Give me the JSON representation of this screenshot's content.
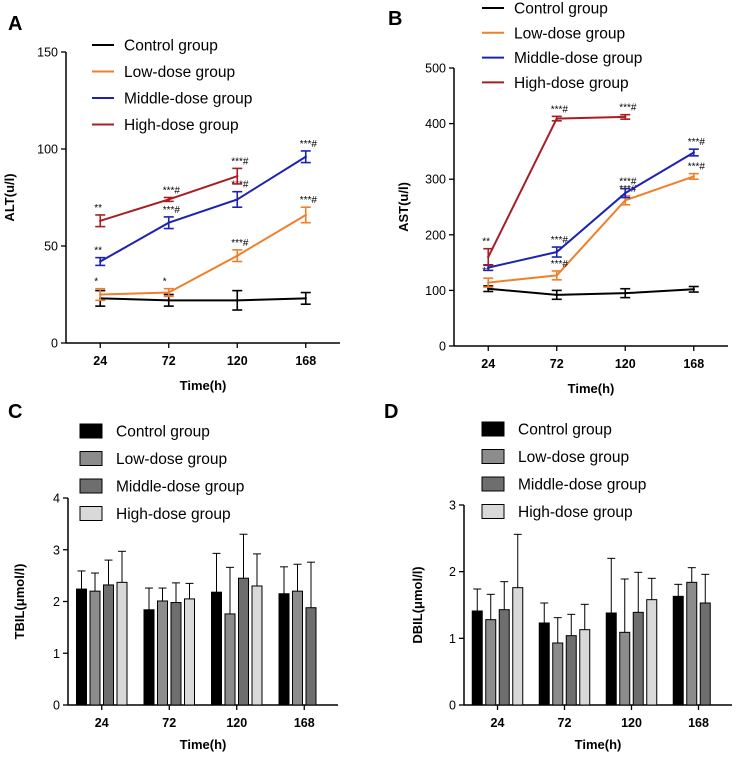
{
  "series_colors": {
    "Control group": "#000000",
    "Low-dose group": "#F07F2A",
    "Middle-dose group": "#1E22B0",
    "High-dose group": "#A81E23"
  },
  "bar_fills": [
    "#000000",
    "#8C8C8C",
    "#6E6E6E",
    "#D9D9D9"
  ],
  "chart_data": [
    {
      "id": "A",
      "panel_label": "A",
      "type": "line",
      "categories": [
        "24",
        "72",
        "120",
        "168"
      ],
      "xlabel": "Time(h)",
      "ylabel": "ALT(u/l)",
      "ylim": [
        0,
        150
      ],
      "yticks": [
        0,
        50,
        100,
        150
      ],
      "legend": [
        "Control group",
        "Low-dose group",
        "Middle-dose group",
        "High-dose group"
      ],
      "series": [
        {
          "name": "Control group",
          "values": [
            23,
            22,
            22,
            23
          ],
          "errors": [
            4,
            3,
            5,
            3
          ],
          "annotations": [
            "",
            "",
            "",
            ""
          ]
        },
        {
          "name": "Low-dose group",
          "values": [
            25,
            26,
            45,
            66
          ],
          "errors": [
            3,
            2,
            3,
            4
          ],
          "annotations": [
            "*",
            "*",
            "***#",
            "***#"
          ]
        },
        {
          "name": "Middle-dose group",
          "values": [
            42,
            62,
            74,
            96
          ],
          "errors": [
            2,
            3,
            4,
            3
          ],
          "annotations": [
            "**",
            "***#",
            "***#",
            "***#"
          ]
        },
        {
          "name": "High-dose group",
          "values": [
            63,
            74,
            86,
            null
          ],
          "errors": [
            3,
            1,
            4,
            null
          ],
          "annotations": [
            "**",
            "***#",
            "***#",
            ""
          ]
        }
      ]
    },
    {
      "id": "B",
      "panel_label": "B",
      "type": "line",
      "categories": [
        "24",
        "72",
        "120",
        "168"
      ],
      "xlabel": "Time(h)",
      "ylabel": "AST(u/l)",
      "ylim": [
        0,
        500
      ],
      "yticks": [
        0,
        100,
        200,
        300,
        400,
        500
      ],
      "legend": [
        "Control group",
        "Low-dose group",
        "Middle-dose group",
        "High-dose group"
      ],
      "series": [
        {
          "name": "Control group",
          "values": [
            103,
            92,
            95,
            102
          ],
          "errors": [
            5,
            8,
            8,
            5
          ],
          "annotations": [
            "",
            "",
            "",
            ""
          ]
        },
        {
          "name": "Low-dose group",
          "values": [
            114,
            127,
            262,
            305
          ],
          "errors": [
            8,
            8,
            8,
            5
          ],
          "annotations": [
            "**",
            "***#",
            "***#",
            "***#"
          ]
        },
        {
          "name": "Middle-dose group",
          "values": [
            141,
            169,
            275,
            348
          ],
          "errors": [
            5,
            9,
            8,
            6
          ],
          "annotations": [
            "",
            "***#",
            "***#",
            "***#"
          ]
        },
        {
          "name": "High-dose group",
          "values": [
            160,
            409,
            412,
            null
          ],
          "errors": [
            15,
            4,
            4,
            null
          ],
          "annotations": [
            "**",
            "***#",
            "***#",
            ""
          ]
        }
      ]
    },
    {
      "id": "C",
      "panel_label": "C",
      "type": "bar",
      "categories": [
        "24",
        "72",
        "120",
        "168"
      ],
      "xlabel": "Time(h)",
      "ylabel": "TBIL(μmol/l)",
      "ylim": [
        0,
        4
      ],
      "yticks": [
        0,
        1,
        2,
        3,
        4
      ],
      "legend": [
        "Control group",
        "Low-dose group",
        "Middle-dose group",
        "High-dose group"
      ],
      "series": [
        {
          "name": "Control group",
          "values": [
            2.24,
            1.84,
            2.18,
            2.15
          ],
          "errors": [
            0.35,
            0.42,
            0.75,
            0.52
          ]
        },
        {
          "name": "Low-dose group",
          "values": [
            2.2,
            2.01,
            1.76,
            2.2
          ],
          "errors": [
            0.35,
            0.25,
            0.9,
            0.52
          ]
        },
        {
          "name": "Middle-dose group",
          "values": [
            2.32,
            1.98,
            2.45,
            1.88
          ],
          "errors": [
            0.48,
            0.38,
            0.85,
            0.88
          ]
        },
        {
          "name": "High-dose group",
          "values": [
            2.37,
            2.05,
            2.3,
            null
          ],
          "errors": [
            0.6,
            0.3,
            0.62,
            null
          ]
        }
      ]
    },
    {
      "id": "D",
      "panel_label": "D",
      "type": "bar",
      "categories": [
        "24",
        "72",
        "120",
        "168"
      ],
      "xlabel": "Time(h)",
      "ylabel": "DBIL(μmol/l)",
      "ylim": [
        0,
        3
      ],
      "yticks": [
        0,
        1,
        2,
        3
      ],
      "legend": [
        "Control group",
        "Low-dose group",
        "Middle-dose group",
        "High-dose group"
      ],
      "series": [
        {
          "name": "Control group",
          "values": [
            1.41,
            1.23,
            1.38,
            1.63
          ],
          "errors": [
            0.33,
            0.3,
            0.82,
            0.18
          ]
        },
        {
          "name": "Low-dose group",
          "values": [
            1.28,
            0.93,
            1.09,
            1.84
          ],
          "errors": [
            0.38,
            0.38,
            0.8,
            0.22
          ]
        },
        {
          "name": "Middle-dose group",
          "values": [
            1.43,
            1.04,
            1.39,
            1.53
          ],
          "errors": [
            0.42,
            0.32,
            0.6,
            0.43
          ]
        },
        {
          "name": "High-dose group",
          "values": [
            1.76,
            1.13,
            1.58,
            null
          ],
          "errors": [
            0.8,
            0.38,
            0.32,
            null
          ]
        }
      ]
    }
  ]
}
